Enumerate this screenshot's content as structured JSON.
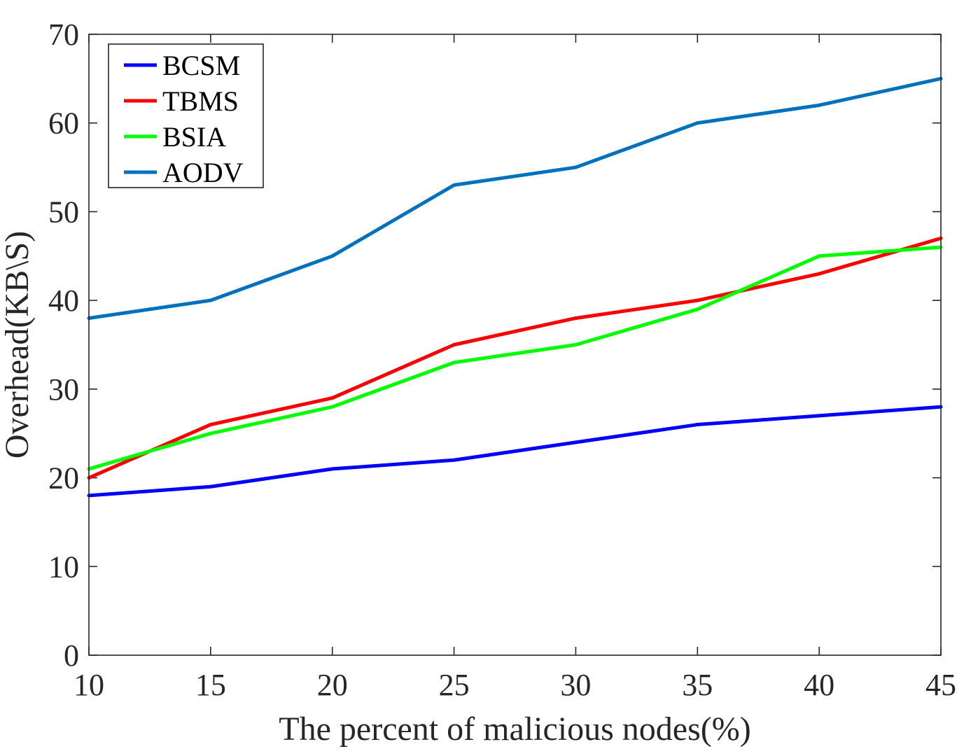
{
  "chart_data": {
    "type": "line",
    "title": "",
    "xlabel": "The percent of malicious nodes(%)",
    "ylabel": "Overhead(KB\\S)",
    "x": [
      10,
      15,
      20,
      25,
      30,
      35,
      40,
      45
    ],
    "xlim": [
      10,
      45
    ],
    "ylim": [
      0,
      70
    ],
    "xticks": [
      10,
      15,
      20,
      25,
      30,
      35,
      40,
      45
    ],
    "yticks": [
      0,
      10,
      20,
      30,
      40,
      50,
      60,
      70
    ],
    "grid": false,
    "legend_position": "top-left",
    "series": [
      {
        "name": "BCSM",
        "color": "#0000ff",
        "values": [
          18,
          19,
          21,
          22,
          24,
          26,
          27,
          28
        ]
      },
      {
        "name": "TBMS",
        "color": "#ff0000",
        "values": [
          20,
          26,
          29,
          35,
          38,
          40,
          43,
          47
        ]
      },
      {
        "name": "BSIA",
        "color": "#00ff00",
        "values": [
          21,
          25,
          28,
          33,
          35,
          39,
          45,
          46
        ]
      },
      {
        "name": "AODV",
        "color": "#0072bd",
        "values": [
          38,
          40,
          45,
          53,
          55,
          60,
          62,
          65
        ]
      }
    ]
  }
}
